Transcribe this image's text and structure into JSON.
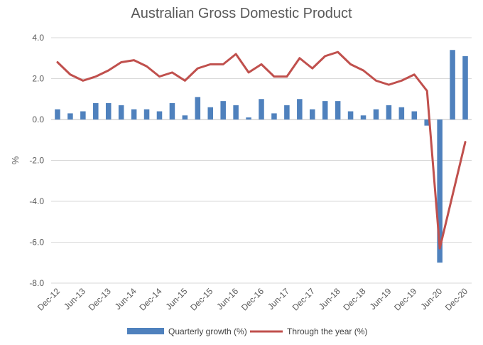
{
  "chart_data": {
    "type": "bar",
    "title": "Australian Gross Domestic Product",
    "ylabel": "%",
    "xlabel": "",
    "ylim": [
      -8.0,
      4.0
    ],
    "yticks": [
      "4.0",
      "2.0",
      "0.0",
      "-2.0",
      "-4.0",
      "-6.0",
      "-8.0"
    ],
    "ytick_values": [
      4,
      2,
      0,
      -2,
      -4,
      -6,
      -8
    ],
    "grid": true,
    "legend_position": "bottom",
    "categories": [
      "Dec-12",
      "Mar-13",
      "Jun-13",
      "Sep-13",
      "Dec-13",
      "Mar-14",
      "Jun-14",
      "Sep-14",
      "Dec-14",
      "Mar-15",
      "Jun-15",
      "Sep-15",
      "Dec-15",
      "Mar-16",
      "Jun-16",
      "Sep-16",
      "Dec-16",
      "Mar-17",
      "Jun-17",
      "Sep-17",
      "Dec-17",
      "Mar-18",
      "Jun-18",
      "Sep-18",
      "Dec-18",
      "Mar-19",
      "Jun-19",
      "Sep-19",
      "Dec-19",
      "Mar-20",
      "Jun-20",
      "Sep-20",
      "Dec-20"
    ],
    "x_tick_labels": [
      "Dec-12",
      "",
      "Jun-13",
      "",
      "Dec-13",
      "",
      "Jun-14",
      "",
      "Dec-14",
      "",
      "Jun-15",
      "",
      "Dec-15",
      "",
      "Jun-16",
      "",
      "Dec-16",
      "",
      "Jun-17",
      "",
      "Dec-17",
      "",
      "Jun-18",
      "",
      "Dec-18",
      "",
      "Jun-19",
      "",
      "Dec-19",
      "",
      "Jun-20",
      "",
      "Dec-20"
    ],
    "series": [
      {
        "name": "Quarterly growth (%)",
        "type": "bar",
        "color": "#4f81bd",
        "values": [
          0.5,
          0.3,
          0.4,
          0.8,
          0.8,
          0.7,
          0.5,
          0.5,
          0.4,
          0.8,
          0.2,
          1.1,
          0.6,
          0.9,
          0.7,
          0.1,
          1.0,
          0.3,
          0.7,
          1.0,
          0.5,
          0.9,
          0.9,
          0.4,
          0.2,
          0.5,
          0.7,
          0.6,
          0.4,
          -0.3,
          -7.0,
          3.4,
          3.1
        ]
      },
      {
        "name": "Through the year (%)",
        "type": "line",
        "color": "#c0504d",
        "values": [
          2.8,
          2.2,
          1.9,
          2.1,
          2.4,
          2.8,
          2.9,
          2.6,
          2.1,
          2.3,
          1.9,
          2.5,
          2.7,
          2.7,
          3.2,
          2.3,
          2.7,
          2.1,
          2.1,
          3.0,
          2.5,
          3.1,
          3.3,
          2.7,
          2.4,
          1.9,
          1.7,
          1.9,
          2.2,
          1.4,
          -6.3,
          -3.7,
          -1.1
        ]
      }
    ]
  }
}
